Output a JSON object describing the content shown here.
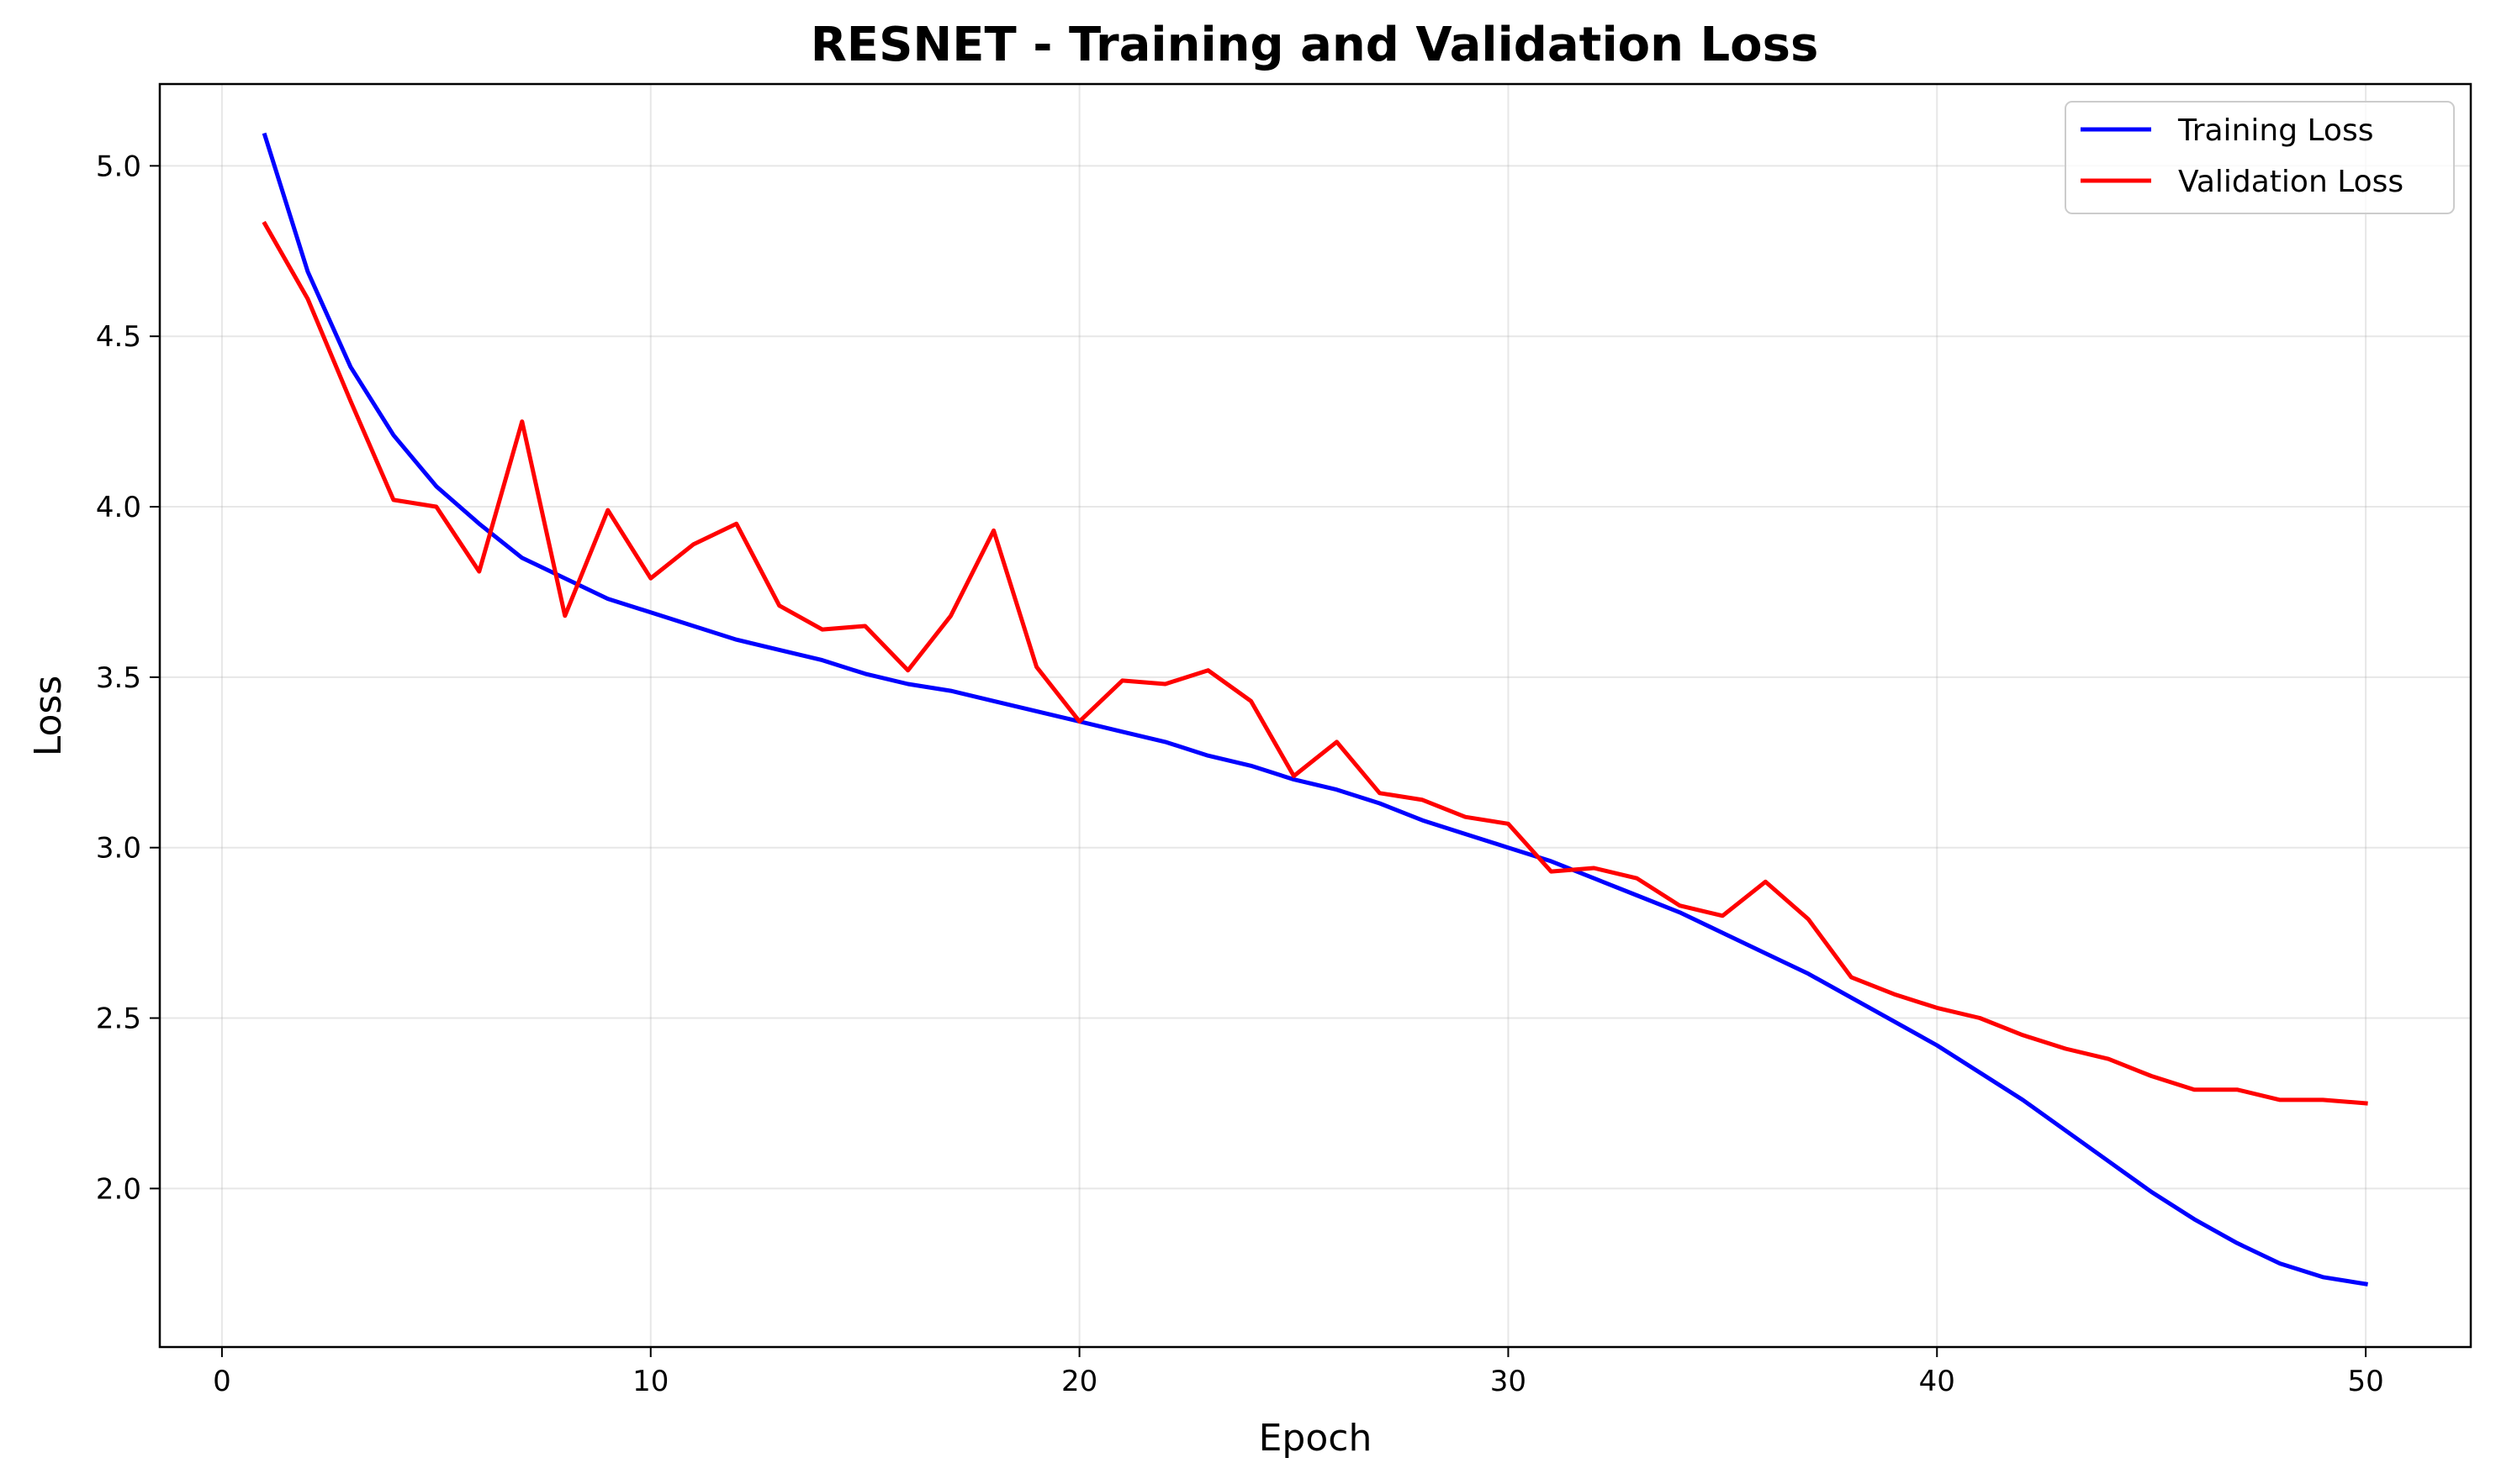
{
  "chart_data": {
    "type": "line",
    "title": "RESNET - Training and Validation Loss",
    "xlabel": "Epoch",
    "ylabel": "Loss",
    "xlim": [
      -1.45,
      52.45
    ],
    "ylim": [
      1.535,
      5.24
    ],
    "x_ticks": [
      0,
      10,
      20,
      30,
      40,
      50
    ],
    "y_ticks": [
      2.0,
      2.5,
      3.0,
      3.5,
      4.0,
      4.5,
      5.0
    ],
    "y_tick_labels": [
      "2.0",
      "2.5",
      "3.0",
      "3.5",
      "4.0",
      "4.5",
      "5.0"
    ],
    "grid": true,
    "legend_position": "top-right",
    "x": [
      1,
      2,
      3,
      4,
      5,
      6,
      7,
      8,
      9,
      10,
      11,
      12,
      13,
      14,
      15,
      16,
      17,
      18,
      19,
      20,
      21,
      22,
      23,
      24,
      25,
      26,
      27,
      28,
      29,
      30,
      31,
      32,
      33,
      34,
      35,
      36,
      37,
      38,
      39,
      40,
      41,
      42,
      43,
      44,
      45,
      46,
      47,
      48,
      49,
      50
    ],
    "series": [
      {
        "name": "Training Loss",
        "color": "#0000ff",
        "values": [
          5.09,
          4.69,
          4.41,
          4.21,
          4.06,
          3.95,
          3.85,
          3.79,
          3.73,
          3.69,
          3.65,
          3.61,
          3.58,
          3.55,
          3.51,
          3.48,
          3.46,
          3.43,
          3.4,
          3.37,
          3.34,
          3.31,
          3.27,
          3.24,
          3.2,
          3.17,
          3.13,
          3.08,
          3.04,
          3.0,
          2.96,
          2.91,
          2.86,
          2.81,
          2.75,
          2.69,
          2.63,
          2.56,
          2.49,
          2.42,
          2.34,
          2.26,
          2.17,
          2.08,
          1.99,
          1.91,
          1.84,
          1.78,
          1.74,
          1.72
        ]
      },
      {
        "name": "Validation Loss",
        "color": "#ff0000",
        "values": [
          4.83,
          4.61,
          4.31,
          4.02,
          4.0,
          3.81,
          4.25,
          3.68,
          3.99,
          3.79,
          3.89,
          3.95,
          3.71,
          3.64,
          3.65,
          3.52,
          3.68,
          3.93,
          3.53,
          3.37,
          3.49,
          3.48,
          3.52,
          3.43,
          3.21,
          3.31,
          3.16,
          3.14,
          3.09,
          3.07,
          2.93,
          2.94,
          2.91,
          2.83,
          2.8,
          2.9,
          2.79,
          2.62,
          2.57,
          2.53,
          2.5,
          2.45,
          2.41,
          2.38,
          2.33,
          2.29,
          2.29,
          2.26,
          2.26,
          2.25
        ]
      }
    ]
  }
}
